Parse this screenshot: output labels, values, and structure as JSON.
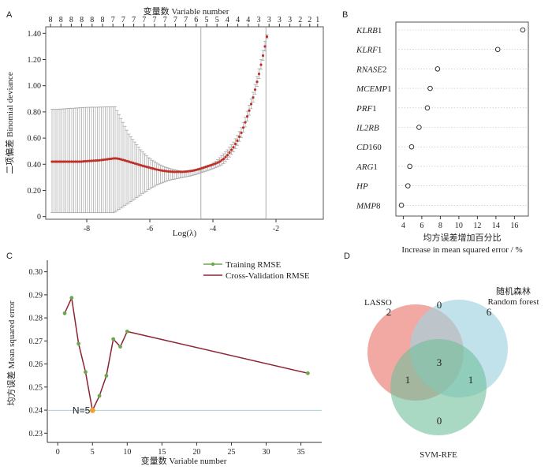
{
  "panels": {
    "a": {
      "letter": "A"
    },
    "b": {
      "letter": "B"
    },
    "c": {
      "letter": "C"
    },
    "d": {
      "letter": "D"
    }
  },
  "chart_data": [
    {
      "id": "A",
      "type": "line",
      "subtype": "cv-errorbar",
      "title": "",
      "xlabel": "Log(λ)",
      "ylabel": "二项偏差 Binomial deviance",
      "top_axis_label": "变量数 Variable number",
      "xlim": [
        -9.3,
        -0.5
      ],
      "ylim": [
        -0.02,
        1.45
      ],
      "xticks": [
        -8,
        -6,
        -4,
        -2
      ],
      "yticks": [
        0,
        0.2,
        0.4,
        0.6,
        0.8,
        1.0,
        1.2,
        1.4
      ],
      "ytick_labels": [
        "0",
        "0.20",
        "0.40",
        "0.60",
        "0.80",
        "1.00",
        "1.20",
        "1.40"
      ],
      "top_ticks_x": [
        -9.15,
        -8.82,
        -8.49,
        -8.16,
        -7.83,
        -7.5,
        -7.17,
        -6.84,
        -6.51,
        -6.18,
        -5.85,
        -5.52,
        -5.19,
        -4.86,
        -4.53,
        -4.2,
        -3.87,
        -3.54,
        -3.21,
        -2.88,
        -2.55,
        -2.22,
        -1.89,
        -1.56,
        -1.23,
        -0.93,
        -0.68
      ],
      "top_ticks": [
        "8",
        "8",
        "8",
        "8",
        "8",
        "8",
        "7",
        "7",
        "7",
        "7",
        "7",
        "7",
        "7",
        "7",
        "6",
        "5",
        "5",
        "4",
        "4",
        "4",
        "3",
        "3",
        "3",
        "3",
        "2",
        "2",
        "1"
      ],
      "vlines": [
        -4.38,
        -2.32
      ],
      "curve_start": -9.1,
      "curve_step": 0.0625,
      "mean": [
        0.42,
        0.42,
        0.42,
        0.42,
        0.42,
        0.42,
        0.42,
        0.42,
        0.42,
        0.42,
        0.42,
        0.42,
        0.42,
        0.42,
        0.42,
        0.42,
        0.422,
        0.423,
        0.424,
        0.425,
        0.426,
        0.427,
        0.428,
        0.429,
        0.43,
        0.432,
        0.434,
        0.436,
        0.438,
        0.44,
        0.442,
        0.444,
        0.445,
        0.444,
        0.441,
        0.437,
        0.433,
        0.429,
        0.424,
        0.42,
        0.415,
        0.411,
        0.406,
        0.402,
        0.397,
        0.392,
        0.388,
        0.384,
        0.38,
        0.376,
        0.372,
        0.368,
        0.364,
        0.36,
        0.357,
        0.354,
        0.351,
        0.349,
        0.347,
        0.345,
        0.344,
        0.343,
        0.342,
        0.342,
        0.342,
        0.342,
        0.342,
        0.343,
        0.344,
        0.346,
        0.348,
        0.35,
        0.353,
        0.357,
        0.361,
        0.365,
        0.37,
        0.375,
        0.38,
        0.385,
        0.39,
        0.395,
        0.4,
        0.406,
        0.412,
        0.42,
        0.43,
        0.44,
        0.455,
        0.47,
        0.49,
        0.51,
        0.53,
        0.555,
        0.58,
        0.61,
        0.64,
        0.68,
        0.72,
        0.765,
        0.81,
        0.86,
        0.91,
        0.97,
        1.03,
        1.09,
        1.16,
        1.23,
        1.3,
        1.375
      ],
      "lower": [
        0.03,
        0.03,
        0.03,
        0.03,
        0.03,
        0.03,
        0.03,
        0.03,
        0.03,
        0.03,
        0.03,
        0.03,
        0.03,
        0.03,
        0.03,
        0.03,
        0.03,
        0.03,
        0.03,
        0.03,
        0.03,
        0.03,
        0.03,
        0.03,
        0.03,
        0.03,
        0.03,
        0.03,
        0.03,
        0.03,
        0.03,
        0.03,
        0.035,
        0.045,
        0.055,
        0.065,
        0.075,
        0.085,
        0.095,
        0.105,
        0.115,
        0.125,
        0.135,
        0.145,
        0.155,
        0.165,
        0.175,
        0.185,
        0.195,
        0.205,
        0.215,
        0.225,
        0.232,
        0.24,
        0.246,
        0.252,
        0.258,
        0.264,
        0.27,
        0.276,
        0.28,
        0.283,
        0.286,
        0.289,
        0.292,
        0.295,
        0.298,
        0.301,
        0.304,
        0.307,
        0.31,
        0.314,
        0.318,
        0.322,
        0.327,
        0.332,
        0.337,
        0.342,
        0.347,
        0.352,
        0.357,
        0.362,
        0.367,
        0.373,
        0.379,
        0.386,
        0.395,
        0.405,
        0.42,
        0.435,
        0.455,
        0.475,
        0.495,
        0.52,
        0.545,
        0.575,
        0.605,
        0.645,
        0.685,
        0.73,
        0.775,
        0.825,
        0.875,
        0.935,
        0.995,
        1.055,
        1.125,
        1.195,
        1.265,
        1.36
      ],
      "upper": [
        0.82,
        0.82,
        0.82,
        0.82,
        0.822,
        0.822,
        0.824,
        0.824,
        0.826,
        0.826,
        0.828,
        0.828,
        0.83,
        0.83,
        0.832,
        0.832,
        0.834,
        0.834,
        0.835,
        0.835,
        0.836,
        0.836,
        0.836,
        0.836,
        0.837,
        0.837,
        0.837,
        0.838,
        0.838,
        0.838,
        0.839,
        0.839,
        0.84,
        0.81,
        0.78,
        0.75,
        0.72,
        0.69,
        0.66,
        0.63,
        0.61,
        0.59,
        0.57,
        0.55,
        0.53,
        0.51,
        0.495,
        0.48,
        0.465,
        0.45,
        0.44,
        0.43,
        0.42,
        0.41,
        0.402,
        0.395,
        0.388,
        0.382,
        0.376,
        0.371,
        0.366,
        0.362,
        0.358,
        0.355,
        0.352,
        0.35,
        0.348,
        0.347,
        0.346,
        0.346,
        0.347,
        0.348,
        0.35,
        0.353,
        0.357,
        0.362,
        0.367,
        0.373,
        0.379,
        0.385,
        0.392,
        0.4,
        0.41,
        0.422,
        0.435,
        0.45,
        0.465,
        0.48,
        0.495,
        0.51,
        0.53,
        0.55,
        0.57,
        0.595,
        0.62,
        0.65,
        0.68,
        0.72,
        0.76,
        0.805,
        0.85,
        0.9,
        0.95,
        1.01,
        1.07,
        1.13,
        1.2,
        1.27,
        1.34,
        1.39
      ]
    },
    {
      "id": "B",
      "type": "scatter",
      "title": "",
      "xlabel": "均方误差增加百分比",
      "xlabel2": "Increase in mean squared error / %",
      "xlim": [
        3.2,
        17.5
      ],
      "xticks": [
        4,
        6,
        8,
        10,
        12,
        14,
        16
      ],
      "categories": [
        "KLRB1",
        "KLRF1",
        "RNASE2",
        "MCEMP1",
        "PRF1",
        "IL2RB",
        "CD160",
        "ARG1",
        "HP",
        "MMP8"
      ],
      "label_parts": [
        [
          "KLRB",
          "1"
        ],
        [
          "KLRF",
          "1"
        ],
        [
          "RNASE",
          "2"
        ],
        [
          "MCEMP",
          "1"
        ],
        [
          "PRF",
          "1"
        ],
        [
          "IL2RB",
          ""
        ],
        [
          "CD",
          "160"
        ],
        [
          "ARG",
          "1"
        ],
        [
          "HP",
          ""
        ],
        [
          "MMP",
          "8"
        ]
      ],
      "values": [
        16.9,
        14.2,
        7.7,
        6.9,
        6.6,
        5.7,
        4.9,
        4.7,
        4.5,
        3.8
      ]
    },
    {
      "id": "C",
      "type": "line",
      "title": "",
      "xlabel": "变量数 Variable number",
      "ylabel": "均方误差 Mean squared error",
      "xlim": [
        -1.5,
        38
      ],
      "ylim": [
        0.226,
        0.305
      ],
      "xticks": [
        0,
        5,
        10,
        15,
        20,
        25,
        30,
        35
      ],
      "yticks": [
        0.23,
        0.24,
        0.25,
        0.26,
        0.27,
        0.28,
        0.29,
        0.3
      ],
      "ytick_labels": [
        "0.23",
        "0.24",
        "0.25",
        "0.26",
        "0.27",
        "0.28",
        "0.29",
        "0.30"
      ],
      "x": [
        1,
        2,
        3,
        4,
        5,
        6,
        7,
        8,
        9,
        10,
        36
      ],
      "series": [
        {
          "name": "Training RMSE",
          "color": "#6aa84f",
          "values": [
            0.282,
            0.2887,
            0.2688,
            0.2565,
            0.2399,
            0.2462,
            0.2549,
            0.2708,
            0.2675,
            0.2741,
            0.256
          ]
        },
        {
          "name": "Cross-Validation RMSE",
          "color": "#8b2332",
          "values": [
            0.282,
            0.2887,
            0.2688,
            0.2565,
            0.2399,
            0.2462,
            0.2549,
            0.2708,
            0.2675,
            0.2741,
            0.256
          ]
        }
      ],
      "hline": 0.2399,
      "annotation": {
        "text": "N=5",
        "x": 5,
        "y": 0.2399,
        "color": "#f0a030"
      },
      "legend_position": "top-right"
    },
    {
      "id": "D",
      "type": "venn",
      "title": "",
      "sets": [
        {
          "name": "LASSO",
          "color": "#ef8c84"
        },
        {
          "name": "随机森林",
          "name2": "Random forest",
          "color": "#9fd3df"
        },
        {
          "name": "SVM-RFE",
          "color": "#6fbf99"
        }
      ],
      "regions": {
        "lasso_only": 2,
        "rf_only": 6,
        "svm_only": 0,
        "lasso_rf": 0,
        "lasso_svm": 1,
        "rf_svm": 1,
        "all": 3
      }
    }
  ]
}
